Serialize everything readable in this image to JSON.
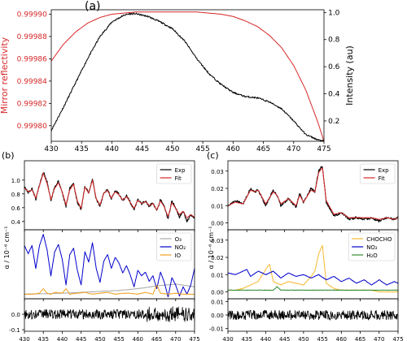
{
  "chart_data": [
    {
      "panel_label": "(a)",
      "type": "line",
      "xlim": [
        430,
        475
      ],
      "x_ticks": [
        "430",
        "435",
        "440",
        "445",
        "450",
        "455",
        "460",
        "465",
        "470",
        "475"
      ],
      "ylabel_left": "Mirror reflectivity",
      "ylim_left": [
        0.999786,
        0.999904
      ],
      "y_ticks_left": [
        "0.99980",
        "0.99982",
        "0.99984",
        "0.99986",
        "0.99988",
        "0.99990"
      ],
      "ylabel_right": "Intensity (au)",
      "ylim_right": [
        0.05,
        1.02
      ],
      "y_ticks_right": [
        "0.2",
        "0.4",
        "0.6",
        "0.8",
        "1.0"
      ],
      "colors": {
        "reflectivity": "#d62728",
        "intensity": "#000000",
        "left_axis": "#d62728"
      },
      "series": [
        {
          "axis": "left",
          "color": "#d62728",
          "x": [
            430,
            432,
            434,
            436,
            438,
            440,
            442,
            444,
            446,
            448,
            450,
            452,
            454,
            456,
            458,
            460,
            462,
            464,
            466,
            468,
            470,
            472,
            474,
            475
          ],
          "values": [
            0.999858,
            0.999873,
            0.999884,
            0.999892,
            0.999897,
            0.9999,
            0.999901,
            0.999902,
            0.999902,
            0.999902,
            0.999902,
            0.999902,
            0.999902,
            0.999901,
            0.9999,
            0.999898,
            0.999894,
            0.999889,
            0.999881,
            0.99987,
            0.999854,
            0.999832,
            0.999803,
            0.999786
          ]
        },
        {
          "axis": "right",
          "color": "#000000",
          "x": [
            430,
            432,
            434,
            436,
            438,
            440,
            442,
            443,
            444,
            446,
            448,
            450,
            452,
            454,
            456,
            458,
            460,
            462,
            464,
            466,
            468,
            470,
            472,
            474,
            475
          ],
          "values": [
            0.13,
            0.3,
            0.48,
            0.66,
            0.82,
            0.93,
            0.98,
            0.99,
            0.99,
            0.97,
            0.93,
            0.88,
            0.79,
            0.66,
            0.55,
            0.47,
            0.41,
            0.38,
            0.37,
            0.34,
            0.29,
            0.2,
            0.1,
            0.06,
            0.05
          ]
        }
      ]
    },
    {
      "panel_label": "(b)",
      "type": "line",
      "xlim": [
        430,
        475
      ],
      "x_ticks": [
        "430",
        "435",
        "440",
        "445",
        "450",
        "455",
        "460",
        "465",
        "470",
        "475"
      ],
      "ylabel": "α / 10⁻⁶ cm⁻¹",
      "subplots": [
        {
          "ylim": [
            0.28,
            1.28
          ],
          "y_ticks": [
            "0.4",
            "0.6",
            "0.8",
            "1.0"
          ],
          "legend": [
            "Exp",
            "Fit"
          ],
          "series": [
            {
              "name": "Exp",
              "color": "#000000",
              "x": [
                430,
                431,
                432,
                433,
                434,
                435,
                436,
                437,
                438,
                439,
                440,
                441,
                442,
                443,
                444,
                445,
                446,
                447,
                448,
                449,
                450,
                451,
                452,
                453,
                454,
                455,
                456,
                457,
                458,
                459,
                460,
                461,
                462,
                463,
                464,
                465,
                466,
                467,
                468,
                469,
                470,
                471,
                472,
                473,
                474,
                475
              ],
              "values": [
                0.9,
                0.82,
                0.88,
                0.72,
                0.93,
                1.12,
                0.97,
                0.7,
                0.9,
                0.98,
                0.82,
                0.62,
                0.88,
                0.95,
                0.68,
                0.57,
                0.92,
                0.8,
                1.02,
                0.72,
                0.62,
                0.82,
                0.86,
                0.73,
                0.84,
                0.8,
                0.7,
                0.77,
                0.68,
                0.57,
                0.72,
                0.66,
                0.7,
                0.62,
                0.67,
                0.55,
                0.72,
                0.62,
                0.43,
                0.7,
                0.6,
                0.46,
                0.56,
                0.4,
                0.5,
                0.44
              ]
            },
            {
              "name": "Fit",
              "color": "#d62728",
              "x": [
                430,
                431,
                432,
                433,
                434,
                435,
                436,
                437,
                438,
                439,
                440,
                441,
                442,
                443,
                444,
                445,
                446,
                447,
                448,
                449,
                450,
                451,
                452,
                453,
                454,
                455,
                456,
                457,
                458,
                459,
                460,
                461,
                462,
                463,
                464,
                465,
                466,
                467,
                468,
                469,
                470,
                471,
                472,
                473,
                474,
                475
              ],
              "values": [
                0.89,
                0.83,
                0.86,
                0.74,
                0.92,
                1.1,
                0.95,
                0.72,
                0.88,
                0.96,
                0.83,
                0.64,
                0.86,
                0.94,
                0.7,
                0.59,
                0.9,
                0.81,
                1.0,
                0.73,
                0.64,
                0.81,
                0.85,
                0.74,
                0.83,
                0.79,
                0.71,
                0.76,
                0.68,
                0.59,
                0.71,
                0.66,
                0.69,
                0.63,
                0.66,
                0.57,
                0.7,
                0.61,
                0.47,
                0.67,
                0.59,
                0.5,
                0.55,
                0.45,
                0.5,
                0.46
              ]
            }
          ]
        },
        {
          "ylim": [
            -0.03,
            0.72
          ],
          "y_ticks": [],
          "legend": [
            "O₃",
            "NO₂",
            "IO"
          ],
          "series": [
            {
              "name": "O₃",
              "color": "#aaaaaa",
              "x": [
                430,
                435,
                440,
                445,
                450,
                455,
                460,
                465,
                470,
                475
              ],
              "values": [
                0.02,
                0.025,
                0.03,
                0.04,
                0.05,
                0.06,
                0.08,
                0.11,
                0.13,
                0.1
              ]
            },
            {
              "name": "NO₂",
              "color": "#0000cc",
              "x": [
                430,
                431,
                432,
                433,
                434,
                435,
                436,
                437,
                438,
                439,
                440,
                441,
                442,
                443,
                444,
                445,
                446,
                447,
                448,
                449,
                450,
                451,
                452,
                453,
                454,
                455,
                456,
                457,
                458,
                459,
                460,
                461,
                462,
                463,
                464,
                465,
                466,
                467,
                468,
                469,
                470,
                471,
                472,
                473,
                474,
                475
              ],
              "values": [
                0.55,
                0.46,
                0.55,
                0.3,
                0.55,
                0.67,
                0.5,
                0.22,
                0.48,
                0.56,
                0.4,
                0.12,
                0.45,
                0.52,
                0.28,
                0.12,
                0.48,
                0.37,
                0.58,
                0.3,
                0.15,
                0.38,
                0.45,
                0.3,
                0.42,
                0.36,
                0.25,
                0.33,
                0.23,
                0.1,
                0.28,
                0.22,
                0.26,
                0.16,
                0.22,
                0.08,
                0.26,
                0.15,
                -0.01,
                0.2,
                0.12,
                0.0,
                0.1,
                0.02,
                0.12,
                0.3
              ]
            },
            {
              "name": "IO",
              "color": "#f0a020",
              "x": [
                430,
                432,
                434,
                435,
                436,
                437,
                438,
                440,
                441,
                442,
                444,
                446,
                448,
                450,
                452,
                454,
                456,
                458,
                460,
                462,
                464,
                465,
                466,
                468,
                470,
                472,
                474,
                475
              ],
              "values": [
                0.02,
                0.02,
                0.03,
                0.08,
                0.03,
                0.02,
                0.04,
                0.03,
                0.08,
                0.02,
                0.03,
                0.04,
                0.02,
                0.03,
                0.04,
                0.02,
                0.03,
                0.03,
                0.02,
                0.04,
                0.02,
                0.12,
                0.03,
                0.02,
                0.03,
                0.02,
                0.02,
                0.02
              ]
            }
          ]
        },
        {
          "ylim": [
            -0.11,
            0.1
          ],
          "y_ticks": [
            "-0.1",
            "0.0"
          ],
          "series_note": "residual"
        }
      ]
    },
    {
      "panel_label": "(c)",
      "type": "line",
      "xlim": [
        430,
        475
      ],
      "x_ticks": [
        "430",
        "435",
        "440",
        "445",
        "450",
        "455",
        "460",
        "465",
        "470",
        "475"
      ],
      "subplots": [
        {
          "ylim": [
            -0.004,
            0.036
          ],
          "y_ticks": [
            "0.00",
            "0.01",
            "0.02",
            "0.03"
          ],
          "legend": [
            "Exp",
            "Fit"
          ],
          "series": [
            {
              "name": "Exp",
              "color": "#000000",
              "x": [
                430,
                432,
                434,
                436,
                437,
                438,
                440,
                442,
                443,
                444,
                446,
                448,
                449,
                450,
                452,
                453,
                454,
                455,
                456,
                458,
                460,
                462,
                464,
                466,
                468,
                470,
                472,
                474,
                475
              ],
              "values": [
                0.01,
                0.013,
                0.011,
                0.02,
                0.018,
                0.019,
                0.01,
                0.019,
                0.016,
                0.01,
                0.014,
                0.009,
                0.017,
                0.012,
                0.02,
                0.018,
                0.03,
                0.033,
                0.012,
                0.004,
                0.006,
                0.002,
                0.003,
                0.002,
                0.003,
                0.001,
                0.003,
                0.002,
                0.003
              ]
            },
            {
              "name": "Fit",
              "color": "#d62728",
              "x": [
                430,
                432,
                434,
                436,
                437,
                438,
                440,
                442,
                443,
                444,
                446,
                448,
                449,
                450,
                452,
                453,
                454,
                455,
                456,
                458,
                460,
                462,
                464,
                466,
                468,
                470,
                472,
                474,
                475
              ],
              "values": [
                0.01,
                0.012,
                0.011,
                0.019,
                0.018,
                0.019,
                0.011,
                0.018,
                0.016,
                0.011,
                0.014,
                0.01,
                0.016,
                0.012,
                0.019,
                0.018,
                0.029,
                0.032,
                0.013,
                0.005,
                0.006,
                0.003,
                0.003,
                0.003,
                0.003,
                0.002,
                0.003,
                0.002,
                0.003
              ]
            }
          ]
        },
        {
          "ylim": [
            -0.004,
            0.036
          ],
          "y_ticks": [
            "0.00",
            "0.01",
            "0.02",
            "0.03"
          ],
          "legend": [
            "CHOCHO",
            "NO₂",
            "H₂O"
          ],
          "series": [
            {
              "name": "CHOCHO",
              "color": "#f5b830",
              "x": [
                430,
                432,
                434,
                436,
                438,
                440,
                441,
                442,
                444,
                446,
                448,
                450,
                452,
                453,
                454,
                455,
                456,
                458,
                460,
                462,
                465,
                468,
                470,
                472,
                475
              ],
              "values": [
                0.001,
                0.001,
                0.002,
                0.004,
                0.006,
                0.013,
                0.016,
                0.006,
                0.004,
                0.006,
                0.005,
                0.004,
                0.009,
                0.012,
                0.022,
                0.027,
                0.005,
                0.002,
                0.001,
                0.001,
                0.001,
                0.001,
                0.0,
                0.0,
                0.0
              ]
            },
            {
              "name": "NO₂",
              "color": "#0000cc",
              "x": [
                430,
                432,
                434,
                435,
                436,
                438,
                440,
                442,
                444,
                446,
                448,
                450,
                452,
                454,
                456,
                458,
                460,
                462,
                464,
                466,
                468,
                470,
                472,
                474,
                475
              ],
              "values": [
                0.011,
                0.01,
                0.012,
                0.013,
                0.009,
                0.012,
                0.01,
                0.012,
                0.008,
                0.011,
                0.009,
                0.01,
                0.008,
                0.01,
                0.007,
                0.009,
                0.006,
                0.008,
                0.005,
                0.007,
                0.004,
                0.007,
                0.004,
                0.006,
                0.005
              ]
            },
            {
              "name": "H₂O",
              "color": "#2e8b2e",
              "x": [
                430,
                435,
                440,
                442,
                443,
                444,
                446,
                450,
                455,
                460,
                465,
                470,
                475
              ],
              "values": [
                0.001,
                0.001,
                0.001,
                0.001,
                0.003,
                0.001,
                0.001,
                0.001,
                0.001,
                0.001,
                0.001,
                0.001,
                0.001
              ]
            }
          ]
        },
        {
          "ylim": [
            -0.012,
            0.012
          ],
          "y_ticks": [
            "-0.01",
            "0.00",
            "0.01"
          ],
          "series_note": "residual"
        }
      ]
    }
  ]
}
